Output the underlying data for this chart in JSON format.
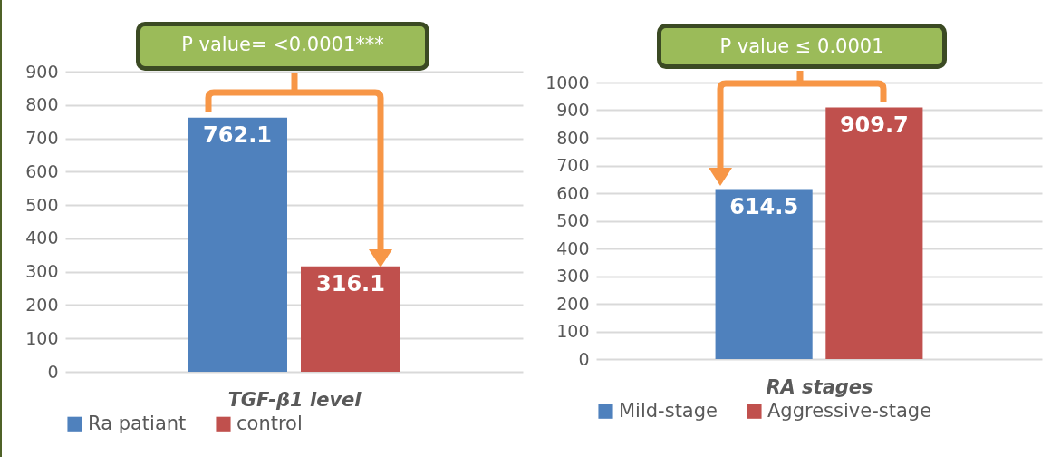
{
  "chart_data": [
    {
      "type": "bar",
      "xlabel": "TGF-β1 level",
      "categories": [
        null
      ],
      "series": [
        {
          "name": "Ra patiant",
          "color": "#4f81bd",
          "values": [
            762.1
          ]
        },
        {
          "name": "control",
          "color": "#c0504d",
          "values": [
            316.1
          ]
        }
      ],
      "ylim": [
        0,
        900
      ],
      "yticks": [
        0,
        100,
        200,
        300,
        400,
        500,
        600,
        700,
        800,
        900
      ],
      "grid": "y",
      "legend": "bottom",
      "data_labels": true,
      "annotations": [
        "P value= <0.0001***"
      ]
    },
    {
      "type": "bar",
      "xlabel": "RA stages",
      "categories": [
        null
      ],
      "series": [
        {
          "name": "Mild-stage",
          "color": "#4f81bd",
          "values": [
            614.5
          ]
        },
        {
          "name": "Aggressive-stage",
          "color": "#c0504d",
          "values": [
            909.7
          ]
        }
      ],
      "ylim": [
        0,
        1000
      ],
      "yticks": [
        0,
        100,
        200,
        300,
        400,
        500,
        600,
        700,
        800,
        900,
        1000
      ],
      "grid": "y",
      "legend": "bottom",
      "data_labels": true,
      "annotations": [
        "P value ≤ 0.0001"
      ]
    }
  ]
}
